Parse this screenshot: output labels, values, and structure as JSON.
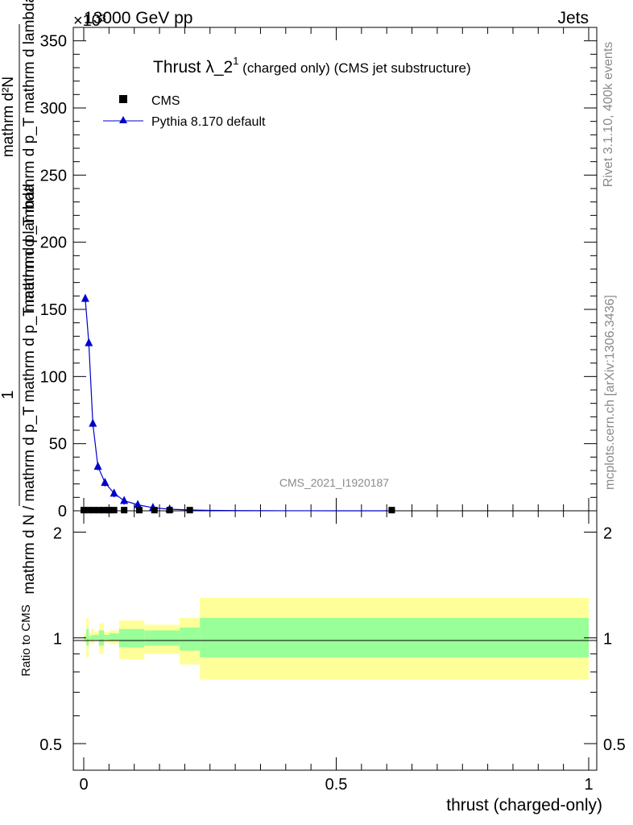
{
  "header": {
    "left": "13000 GeV pp",
    "right": "Jets",
    "exponent": "×10³"
  },
  "side_text": {
    "top": "Rivet 3.1.10,  400k events",
    "bottom": "mcplots.cern.ch [arXiv:1306.3436]"
  },
  "chart_data": [
    {
      "type": "line",
      "panel": "main",
      "title_main": "Thrust λ_2",
      "title_sup": "1",
      "title_rest": " (charged only) (CMS jet substructure)",
      "watermark": "CMS_2021_I1920187",
      "ylabel_numerator": "mathrm d²N",
      "ylabel_denominator": "mathrm d p_T mathrm d p_T mathrm d lambda",
      "ylabel_fraction_top": "1",
      "ylabel_fraction_bottom": "mathrm d N / mathrm d p_T mathrm d p_T mathrm d lambda",
      "y_scale_note": "×10³",
      "xlim": [
        0,
        1
      ],
      "ylim": [
        0,
        360
      ],
      "y_ticks": [
        0,
        50,
        100,
        150,
        200,
        250,
        300,
        350
      ],
      "y_tick_labels": [
        "0",
        "50",
        "100",
        "150",
        "200",
        "250",
        "300",
        "350"
      ],
      "legend_position": "top-left",
      "series": [
        {
          "name": "CMS",
          "marker": "square",
          "color": "#000000",
          "x": [
            0.0,
            0.01,
            0.02,
            0.03,
            0.04,
            0.05,
            0.06,
            0.08,
            0.11,
            0.14,
            0.17,
            0.21,
            0.61
          ],
          "y": [
            0.5,
            0.5,
            0.5,
            0.5,
            0.5,
            0.5,
            0.5,
            0.5,
            0.5,
            0.5,
            0.5,
            0.5,
            0.5
          ]
        },
        {
          "name": "Pythia 8.170 default",
          "marker": "triangle",
          "color": "#0000cc",
          "x": [
            0.003,
            0.01,
            0.018,
            0.028,
            0.042,
            0.06,
            0.08,
            0.107,
            0.137,
            0.17,
            0.21,
            0.25,
            0.3,
            0.4,
            0.5,
            0.6
          ],
          "y": [
            158,
            125,
            65,
            33,
            21,
            13,
            7.5,
            4.5,
            2.3,
            1.2,
            0.6,
            0.3,
            0.15,
            0.05,
            0.02,
            0.01
          ]
        }
      ]
    },
    {
      "type": "area",
      "panel": "ratio",
      "ylabel": "Ratio to CMS",
      "xlabel": "thrust (charged-only)",
      "xlim": [
        0,
        1
      ],
      "ylim": [
        0.42,
        2.3
      ],
      "log_y": true,
      "y_ticks": [
        0.5,
        1,
        2
      ],
      "y_tick_labels": [
        "0.5",
        "1",
        "2"
      ],
      "x_ticks": [
        0,
        0.5,
        1
      ],
      "x_tick_labels": [
        "0",
        "0.5",
        "1"
      ],
      "reference_line": 1,
      "bands": {
        "edges": [
          0.0,
          0.005,
          0.01,
          0.015,
          0.02,
          0.03,
          0.04,
          0.05,
          0.07,
          0.12,
          0.19,
          0.23,
          1.0
        ],
        "yellow_lo": [
          0.97,
          0.88,
          0.97,
          0.96,
          0.98,
          0.9,
          0.97,
          0.96,
          0.87,
          0.9,
          0.84,
          0.76
        ],
        "yellow_hi": [
          1.03,
          1.14,
          1.03,
          1.06,
          1.04,
          1.1,
          1.04,
          1.05,
          1.12,
          1.09,
          1.14,
          1.3
        ],
        "green_lo": [
          0.99,
          0.95,
          0.99,
          0.98,
          0.99,
          0.95,
          0.99,
          0.98,
          0.94,
          0.95,
          0.92,
          0.88
        ],
        "green_hi": [
          1.01,
          1.06,
          1.01,
          1.02,
          1.02,
          1.05,
          1.02,
          1.03,
          1.06,
          1.05,
          1.07,
          1.14
        ]
      },
      "colors": {
        "yellow": "#ffff99",
        "green": "#99ff99",
        "line": "#000000"
      }
    }
  ]
}
